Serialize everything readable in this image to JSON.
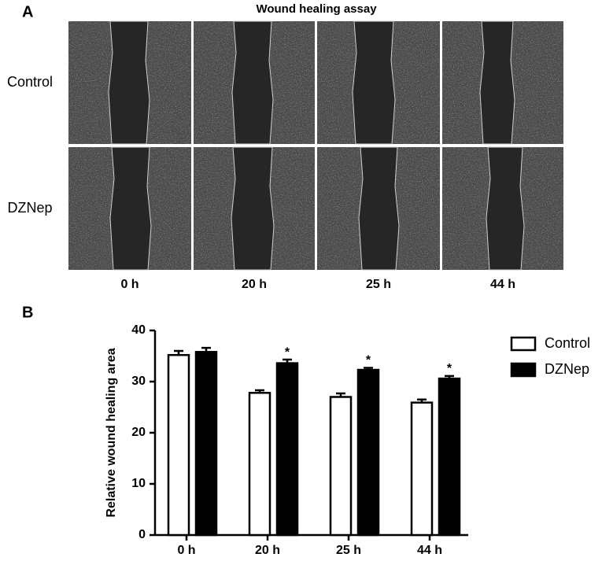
{
  "panel_a": {
    "label": "A",
    "title": "Wound healing assay",
    "row_labels": [
      "Control",
      "DZNep"
    ],
    "col_labels": [
      "0 h",
      "20 h",
      "25 h",
      "44 h"
    ]
  },
  "chart_data": {
    "type": "bar",
    "panel_label": "B",
    "y_label": "Relative wound healing area",
    "categories": [
      "0 h",
      "20 h",
      "25 h",
      "44 h"
    ],
    "series": [
      {
        "name": "Control",
        "color": "#ffffff",
        "values": [
          35.2,
          27.8,
          27.0,
          25.9
        ],
        "errors": [
          0.8,
          0.5,
          0.7,
          0.6
        ]
      },
      {
        "name": "DZNep",
        "color": "#000000",
        "values": [
          35.8,
          33.6,
          32.3,
          30.6
        ],
        "errors": [
          0.8,
          0.7,
          0.4,
          0.5
        ],
        "significance": [
          null,
          "*",
          "*",
          "*"
        ]
      }
    ],
    "ylim": [
      0,
      40
    ],
    "yticks": [
      0,
      10,
      20,
      30,
      40
    ],
    "legend": "right"
  }
}
